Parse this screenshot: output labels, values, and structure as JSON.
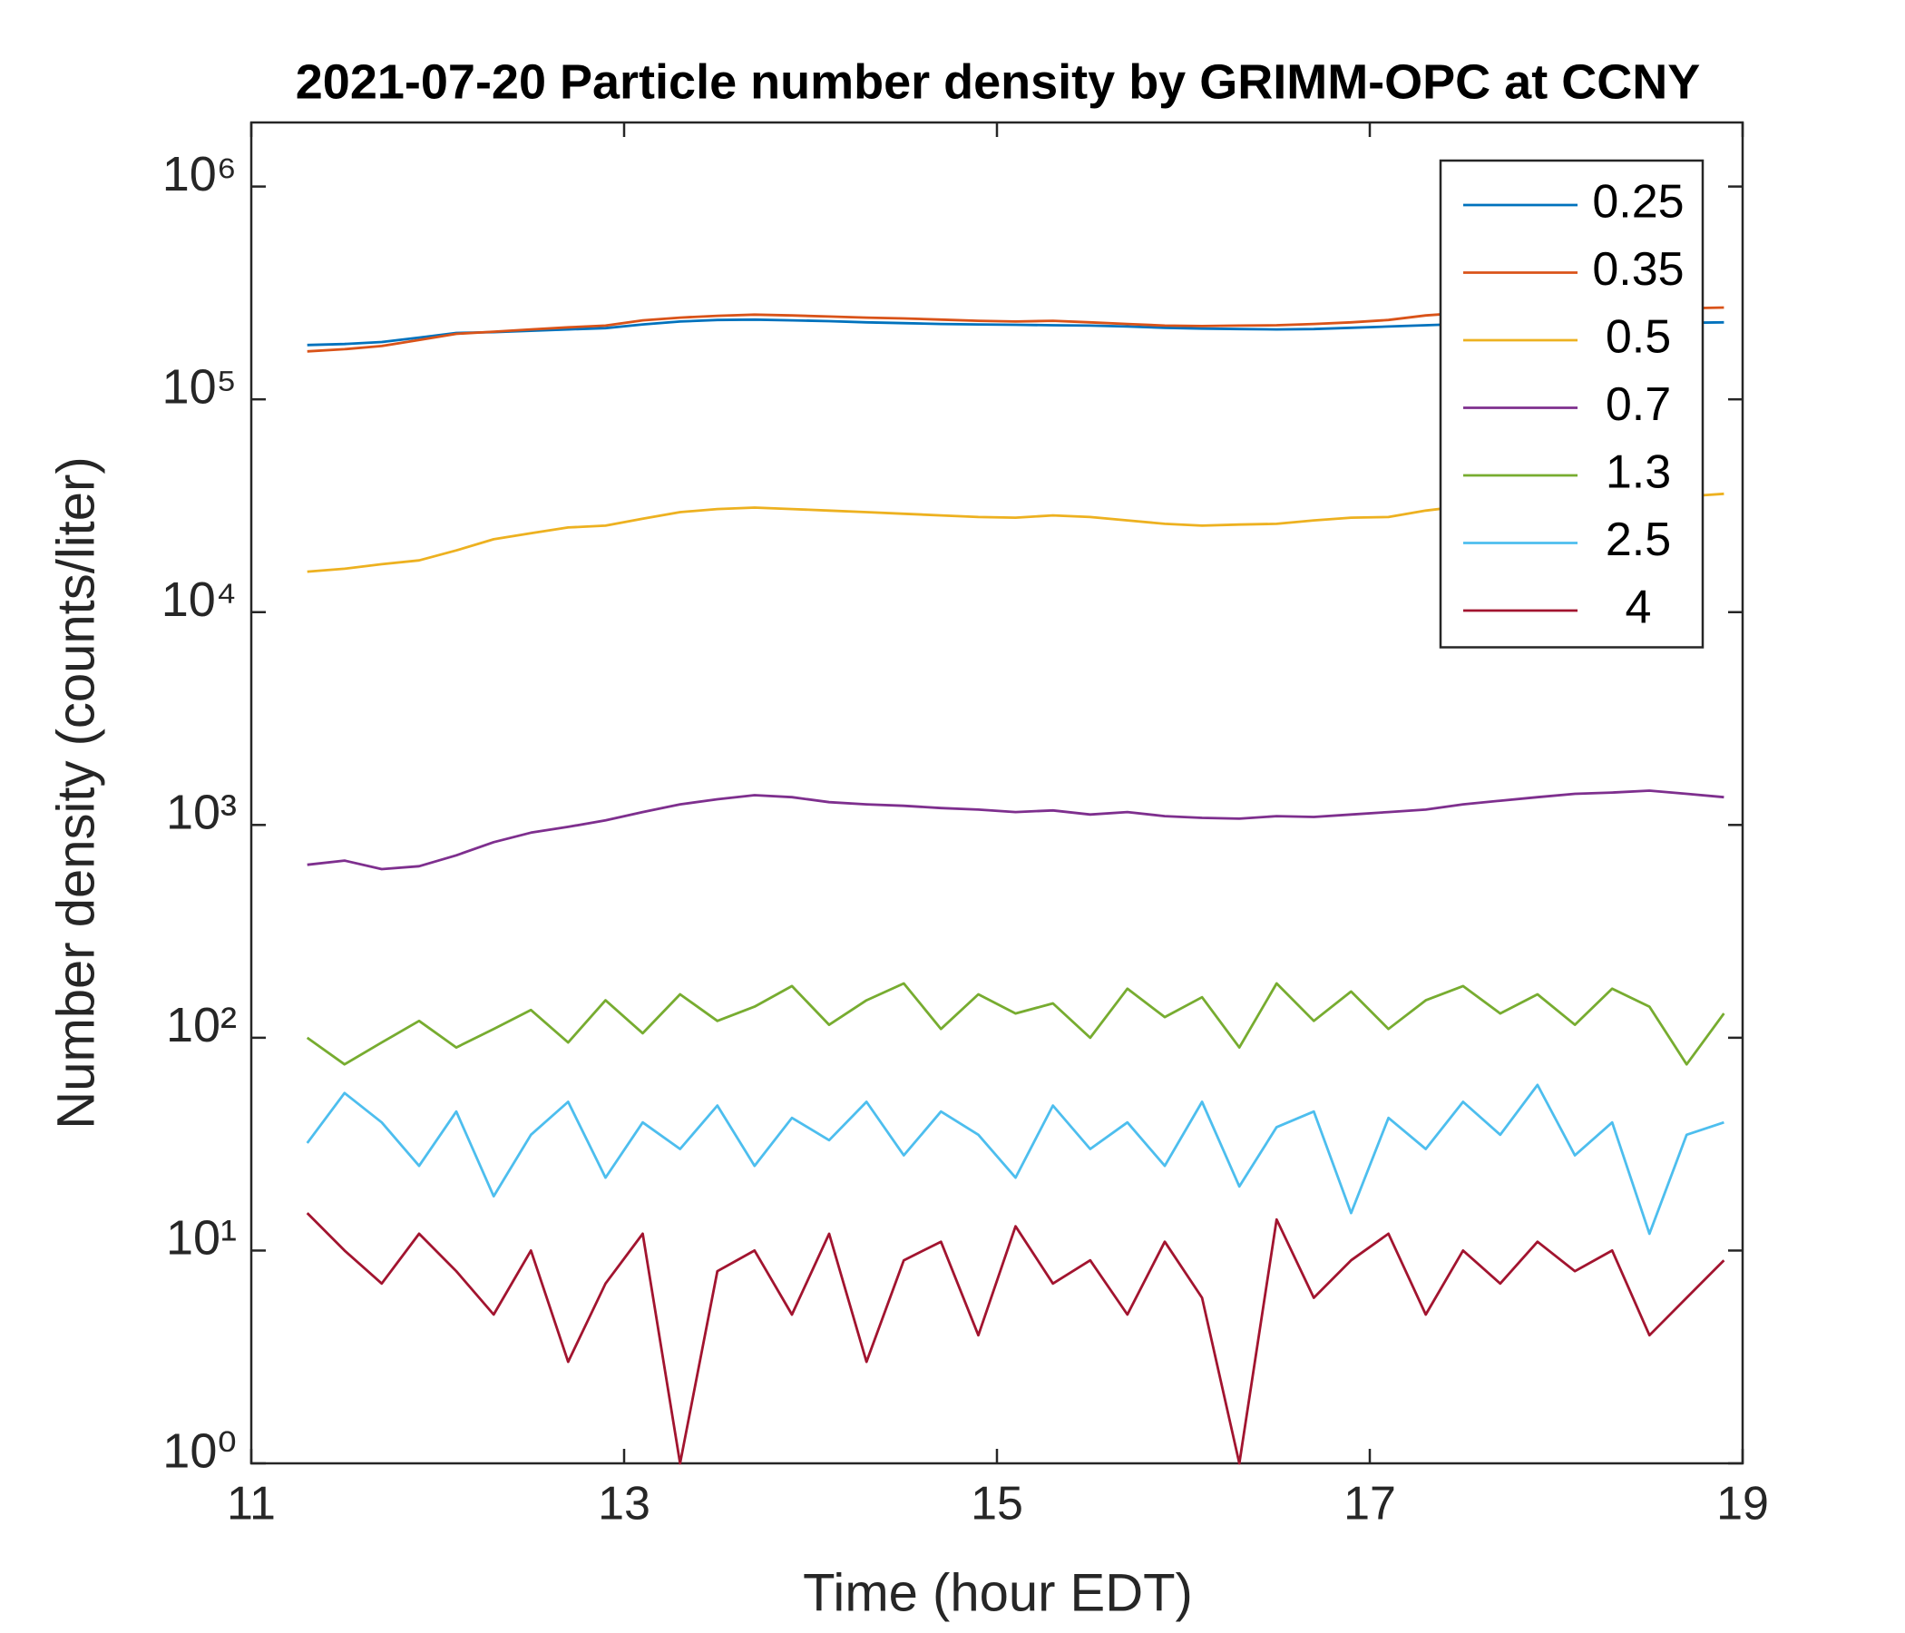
{
  "chart_data": {
    "type": "line",
    "title": "2021-07-20 Particle number density by GRIMM-OPC at CCNY",
    "xlabel": "Time (hour EDT)",
    "ylabel": "Number density (counts/liter)",
    "xlim": [
      11,
      19
    ],
    "xticks": [
      11,
      13,
      15,
      17,
      19
    ],
    "ylim": [
      1,
      2000000
    ],
    "yscale": "log",
    "yticks": [
      {
        "value": 1,
        "label": "10⁰"
      },
      {
        "value": 10,
        "label": "10¹"
      },
      {
        "value": 100,
        "label": "10²"
      },
      {
        "value": 1000,
        "label": "10³"
      },
      {
        "value": 10000,
        "label": "10⁴"
      },
      {
        "value": 100000,
        "label": "10⁵"
      },
      {
        "value": 1000000,
        "label": "10⁶"
      }
    ],
    "legend": "northeast",
    "x": [
      11.3,
      11.5,
      11.7,
      11.9,
      12.1,
      12.3,
      12.5,
      12.7,
      12.9,
      13.1,
      13.3,
      13.5,
      13.7,
      13.9,
      14.1,
      14.3,
      14.5,
      14.7,
      14.9,
      15.1,
      15.3,
      15.5,
      15.7,
      15.9,
      16.1,
      16.3,
      16.5,
      16.7,
      16.9,
      17.1,
      17.3,
      17.5,
      17.7,
      17.9,
      18.1,
      18.3,
      18.5,
      18.7,
      18.9
    ],
    "series": [
      {
        "name": "0.25",
        "color": "#0072bd",
        "values": [
          180000,
          182000,
          186000,
          195000,
          205000,
          207000,
          210000,
          213000,
          216000,
          225000,
          232000,
          236000,
          237000,
          235000,
          233000,
          230000,
          228000,
          226000,
          225000,
          224000,
          223000,
          222000,
          220000,
          217000,
          215000,
          214000,
          213000,
          214000,
          217000,
          220000,
          223000,
          226000,
          228000,
          229000,
          230000,
          229000,
          228000,
          229000,
          230000
        ]
      },
      {
        "name": "0.35",
        "color": "#d95319",
        "values": [
          168000,
          172000,
          178000,
          190000,
          203000,
          208000,
          213000,
          218000,
          222000,
          235000,
          242000,
          247000,
          250000,
          248000,
          245000,
          242000,
          240000,
          237000,
          234000,
          232000,
          234000,
          230000,
          226000,
          222000,
          221000,
          222000,
          223000,
          226000,
          230000,
          236000,
          248000,
          255000,
          258000,
          255000,
          258000,
          262000,
          265000,
          268000,
          270000
        ]
      },
      {
        "name": "0.5",
        "color": "#edb120",
        "values": [
          15500,
          16000,
          16800,
          17500,
          19500,
          22000,
          23500,
          25000,
          25500,
          27500,
          29500,
          30500,
          31000,
          30500,
          30000,
          29500,
          29000,
          28500,
          28000,
          27800,
          28500,
          28000,
          27000,
          26000,
          25500,
          25800,
          26000,
          27000,
          27800,
          28000,
          30000,
          31500,
          32000,
          32500,
          33000,
          33500,
          34000,
          35000,
          36000
        ]
      },
      {
        "name": "0.7",
        "color": "#7e2f8e",
        "values": [
          650,
          680,
          620,
          640,
          720,
          830,
          920,
          980,
          1050,
          1150,
          1250,
          1320,
          1380,
          1350,
          1280,
          1250,
          1230,
          1200,
          1180,
          1150,
          1170,
          1120,
          1150,
          1100,
          1080,
          1070,
          1100,
          1090,
          1120,
          1150,
          1180,
          1250,
          1300,
          1350,
          1400,
          1420,
          1450,
          1400,
          1350
        ]
      },
      {
        "name": "1.3",
        "color": "#77ac30",
        "values": [
          100,
          75,
          95,
          120,
          90,
          110,
          135,
          95,
          150,
          105,
          160,
          120,
          140,
          175,
          115,
          150,
          180,
          110,
          160,
          130,
          145,
          100,
          170,
          125,
          155,
          90,
          180,
          120,
          165,
          110,
          150,
          175,
          130,
          160,
          115,
          170,
          140,
          75,
          130
        ]
      },
      {
        "name": "2.5",
        "color": "#4dbeee",
        "values": [
          32,
          55,
          40,
          25,
          45,
          18,
          35,
          50,
          22,
          40,
          30,
          48,
          25,
          42,
          33,
          50,
          28,
          45,
          35,
          22,
          48,
          30,
          40,
          25,
          50,
          20,
          38,
          45,
          15,
          42,
          30,
          50,
          35,
          60,
          28,
          40,
          12,
          35,
          40
        ]
      },
      {
        "name": "4",
        "color": "#a2142f",
        "values": [
          15,
          10,
          7,
          12,
          8,
          5,
          10,
          3,
          7,
          12,
          1,
          8,
          10,
          5,
          12,
          3,
          9,
          11,
          4,
          13,
          7,
          9,
          5,
          11,
          6,
          1,
          14,
          6,
          9,
          12,
          5,
          10,
          7,
          11,
          8,
          10,
          4,
          6,
          9
        ]
      }
    ]
  }
}
